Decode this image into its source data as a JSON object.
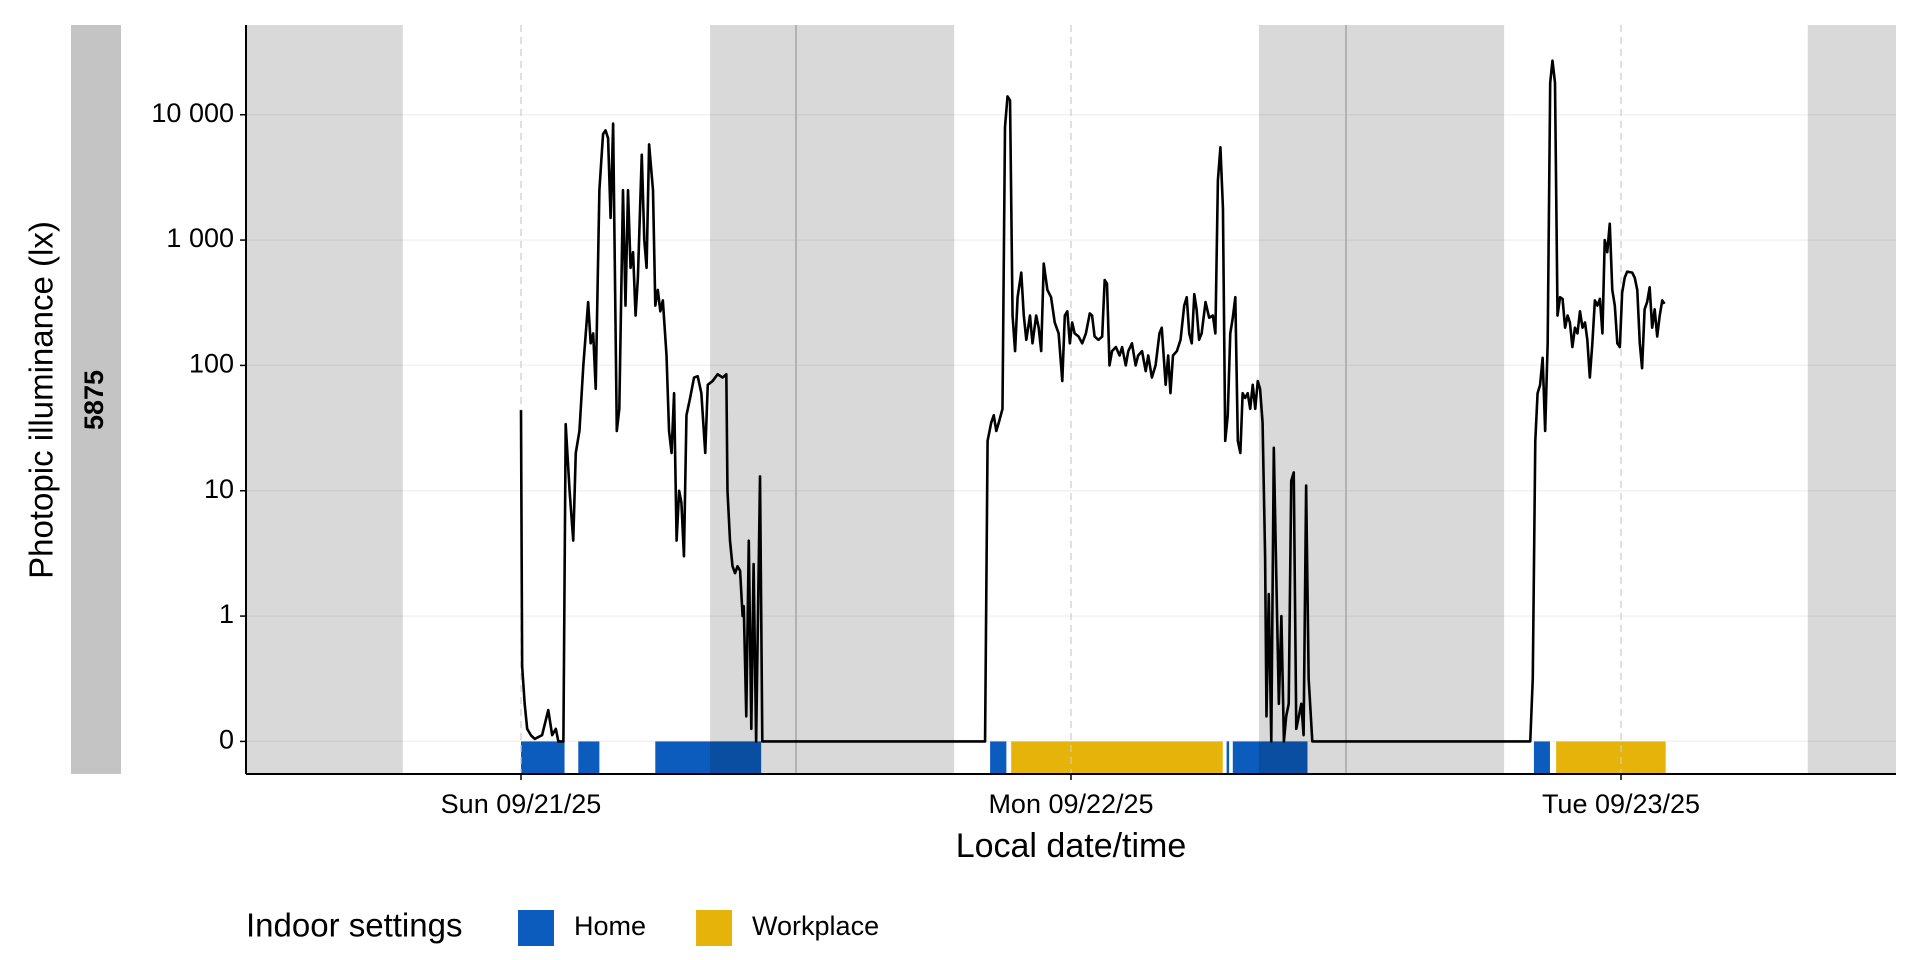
{
  "chart_data": {
    "type": "line",
    "y_label": "Photopic illuminance (lx)",
    "x_label": "Local date/time",
    "facet_label": "5875",
    "xlim": [
      0,
      72
    ],
    "xticks": [
      {
        "value": 12,
        "label": "Sun 09/21/25"
      },
      {
        "value": 36,
        "label": "Mon 09/22/25"
      },
      {
        "value": 60,
        "label": "Tue 09/23/25"
      }
    ],
    "ylim": [
      -0.26,
      52000
    ],
    "yscale": "symlog",
    "yticks": [
      0,
      1,
      10,
      100,
      {
        "value": 1000,
        "label": "1 000"
      },
      {
        "value": 10000,
        "label": "10 000"
      }
    ],
    "grid": true,
    "night": [
      [
        0,
        6.84
      ],
      [
        20.25,
        30.9
      ],
      [
        44.2,
        54.9
      ],
      [
        68.15,
        72
      ]
    ],
    "midnight": [
      24,
      48
    ],
    "legend_title": "Indoor settings",
    "settings": [
      {
        "name": "Home",
        "color": "#0b5cbd",
        "intervals": [
          [
            12.0,
            13.9
          ],
          [
            14.5,
            15.42
          ],
          [
            17.86,
            22.48
          ],
          [
            32.47,
            33.18
          ],
          [
            42.79,
            42.9
          ],
          [
            43.06,
            46.32
          ],
          [
            56.2,
            56.9
          ]
        ]
      },
      {
        "name": "Workplace",
        "color": "#e6b30a",
        "intervals": [
          [
            33.39,
            42.62
          ],
          [
            57.17,
            61.95
          ]
        ]
      }
    ],
    "color": "#000000",
    "x": [
      12.0,
      12.05,
      12.16,
      12.27,
      12.43,
      12.6,
      12.92,
      13.19,
      13.36,
      13.52,
      13.63,
      13.85,
      13.95,
      14.12,
      14.28,
      14.39,
      14.55,
      14.72,
      14.93,
      15.04,
      15.15,
      15.26,
      15.42,
      15.58,
      15.69,
      15.8,
      15.91,
      16.02,
      16.18,
      16.29,
      16.45,
      16.56,
      16.67,
      16.78,
      16.89,
      17.0,
      17.1,
      17.27,
      17.38,
      17.48,
      17.59,
      17.76,
      17.86,
      17.97,
      18.08,
      18.19,
      18.35,
      18.46,
      18.57,
      18.68,
      18.79,
      18.9,
      19.0,
      19.11,
      19.22,
      19.38,
      19.55,
      19.71,
      19.87,
      20.04,
      20.15,
      20.36,
      20.58,
      20.8,
      20.96,
      21.01,
      21.12,
      21.23,
      21.34,
      21.45,
      21.56,
      21.67,
      21.72,
      21.83,
      21.94,
      22.05,
      22.15,
      22.26,
      22.43,
      22.53,
      32.25,
      32.36,
      32.52,
      32.63,
      32.74,
      32.85,
      33.01,
      33.12,
      33.23,
      33.34,
      33.45,
      33.56,
      33.67,
      33.83,
      33.94,
      34.05,
      34.21,
      34.32,
      34.48,
      34.59,
      34.7,
      34.81,
      34.97,
      35.13,
      35.29,
      35.46,
      35.62,
      35.73,
      35.84,
      35.95,
      36.05,
      36.16,
      36.33,
      36.49,
      36.65,
      36.82,
      36.92,
      37.03,
      37.2,
      37.36,
      37.47,
      37.57,
      37.68,
      37.79,
      37.96,
      38.12,
      38.23,
      38.39,
      38.5,
      38.66,
      38.82,
      38.93,
      39.1,
      39.26,
      39.37,
      39.53,
      39.69,
      39.86,
      39.96,
      40.13,
      40.24,
      40.34,
      40.45,
      40.62,
      40.78,
      40.94,
      41.05,
      41.16,
      41.27,
      41.38,
      41.48,
      41.59,
      41.7,
      41.87,
      42.03,
      42.19,
      42.3,
      42.41,
      42.52,
      42.63,
      42.73,
      42.84,
      42.95,
      43.06,
      43.17,
      43.28,
      43.39,
      43.49,
      43.6,
      43.71,
      43.82,
      43.93,
      44.04,
      44.15,
      44.25,
      44.36,
      44.47,
      44.53,
      44.63,
      44.74,
      44.85,
      44.96,
      45.07,
      45.18,
      45.29,
      45.39,
      45.5,
      45.61,
      45.72,
      45.83,
      45.94,
      46.05,
      46.15,
      46.26,
      46.37,
      46.53,
      56.04,
      56.15,
      56.26,
      56.36,
      56.47,
      56.58,
      56.69,
      56.8,
      56.91,
      57.01,
      57.12,
      57.23,
      57.34,
      57.45,
      57.56,
      57.67,
      57.77,
      57.88,
      57.99,
      58.1,
      58.21,
      58.32,
      58.43,
      58.53,
      58.64,
      58.75,
      58.86,
      58.97,
      59.08,
      59.19,
      59.29,
      59.4,
      59.51,
      59.62,
      59.73,
      59.84,
      59.95,
      60.05,
      60.16,
      60.27,
      60.49,
      60.6,
      60.71,
      60.82,
      60.92,
      61.03,
      61.14,
      61.25,
      61.36,
      61.47,
      61.58,
      61.69,
      61.8,
      61.9
    ],
    "values": [
      44,
      0.6,
      0.3,
      0.1,
      0.05,
      0.02,
      0.05,
      0.25,
      0.05,
      0.1,
      0,
      0,
      34,
      10,
      4,
      20,
      30,
      100,
      320,
      150,
      180,
      65,
      2500,
      7000,
      7500,
      6500,
      1500,
      8500,
      30,
      45,
      2500,
      300,
      2500,
      600,
      800,
      250,
      500,
      4800,
      1000,
      600,
      5800,
      2500,
      300,
      400,
      270,
      330,
      120,
      30,
      20,
      60,
      4,
      10,
      8,
      3,
      40,
      55,
      80,
      82,
      60,
      20,
      70,
      75,
      85,
      80,
      85,
      10,
      4,
      2.5,
      2.2,
      2.5,
      2.3,
      1,
      1.2,
      0.2,
      4,
      0.1,
      2.6,
      0,
      13,
      0,
      0,
      25,
      35,
      40,
      30,
      35,
      45,
      8000,
      14000,
      13000,
      250,
      130,
      350,
      550,
      250,
      160,
      250,
      150,
      250,
      200,
      130,
      650,
      400,
      350,
      220,
      180,
      75,
      250,
      270,
      150,
      220,
      180,
      170,
      150,
      180,
      260,
      250,
      170,
      160,
      170,
      480,
      450,
      100,
      130,
      140,
      120,
      140,
      100,
      130,
      150,
      100,
      120,
      130,
      90,
      120,
      80,
      100,
      180,
      200,
      70,
      120,
      60,
      120,
      130,
      160,
      300,
      350,
      180,
      150,
      370,
      280,
      160,
      180,
      320,
      240,
      250,
      180,
      3000,
      5500,
      1800,
      25,
      40,
      180,
      240,
      350,
      25,
      20,
      60,
      55,
      60,
      45,
      70,
      45,
      75,
      65,
      35,
      3,
      0.2,
      1.5,
      0,
      22,
      2,
      0.3,
      1,
      0,
      0.2,
      0.3,
      12,
      14,
      0.1,
      0.2,
      0.3,
      0.05,
      11,
      0.5,
      0,
      0,
      0.5,
      25,
      60,
      70,
      115,
      30,
      150,
      18000,
      27000,
      18000,
      250,
      350,
      340,
      200,
      250,
      220,
      140,
      200,
      180,
      270,
      200,
      220,
      160,
      80,
      150,
      330,
      300,
      340,
      180,
      1000,
      800,
      1350,
      400,
      300,
      150,
      140,
      380,
      500,
      560,
      550,
      500,
      400,
      150,
      95,
      280,
      320,
      420,
      200,
      280,
      170,
      250,
      330,
      310
    ]
  }
}
